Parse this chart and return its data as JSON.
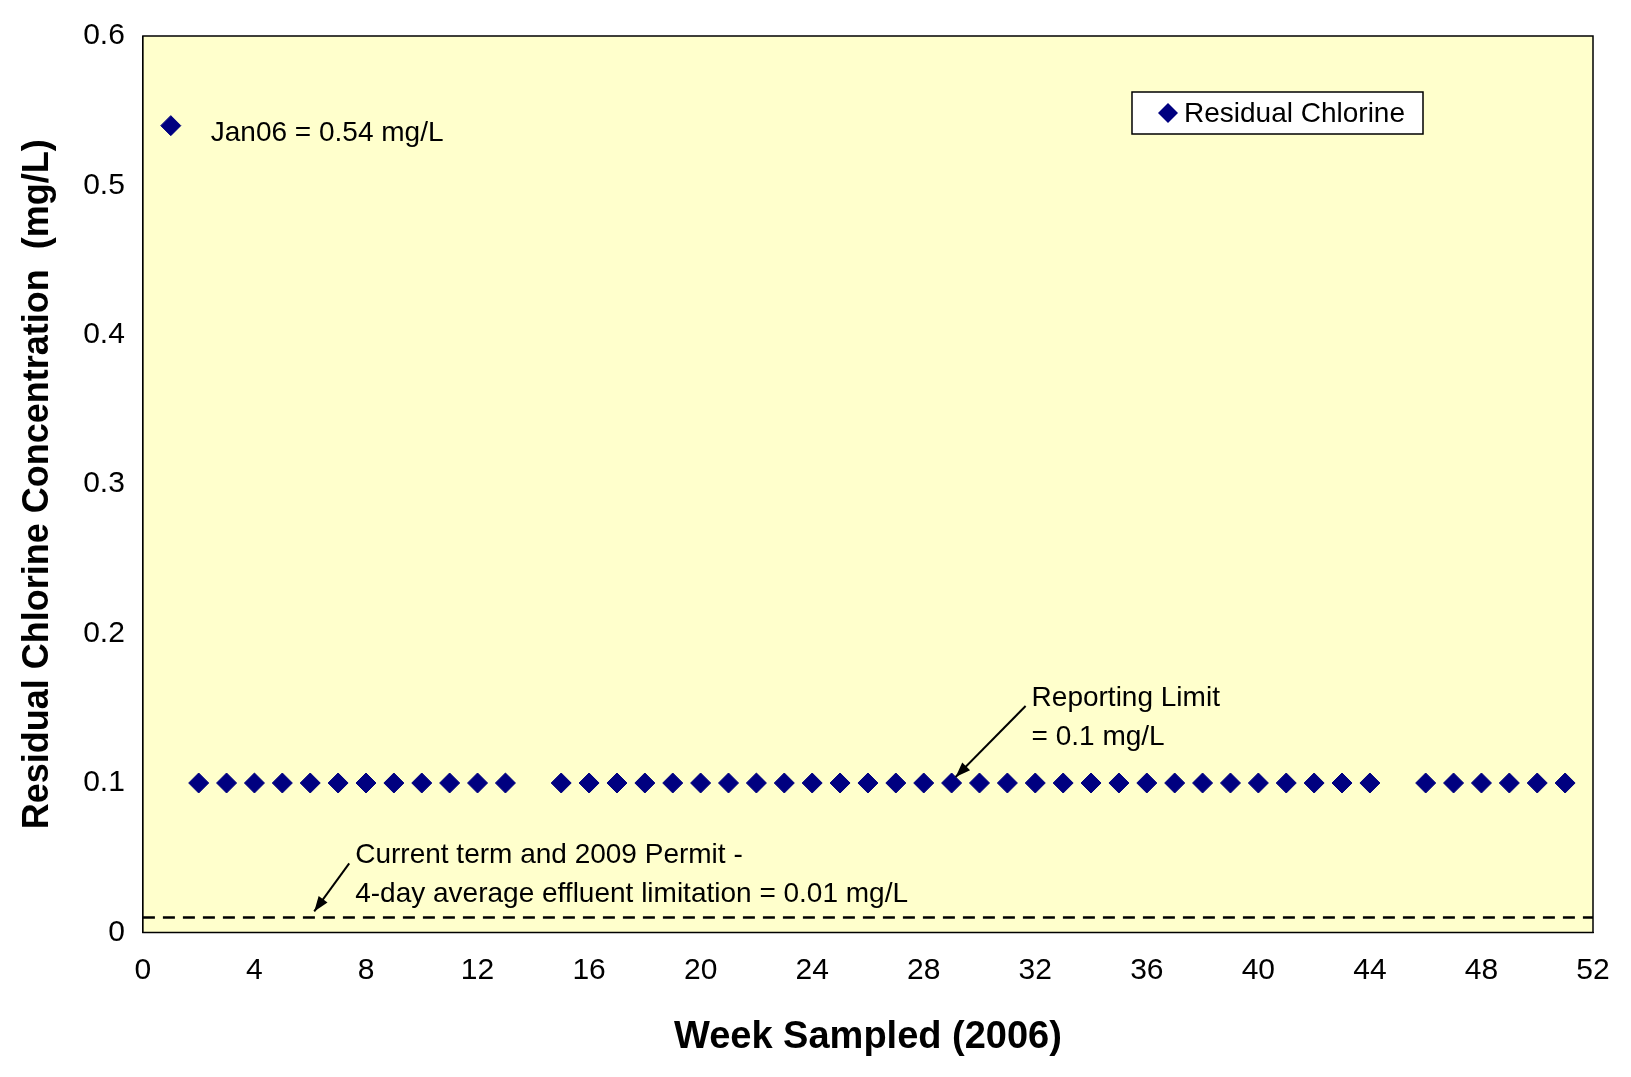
{
  "chart_data": {
    "type": "scatter",
    "xlabel": "Week Sampled (2006)",
    "ylabel": "Residual Chlorine Concentration  (mg/L)",
    "x": [
      1,
      2,
      3,
      4,
      5,
      6,
      7,
      8,
      9,
      10,
      11,
      12,
      13,
      15,
      16,
      17,
      18,
      19,
      20,
      21,
      22,
      23,
      24,
      25,
      26,
      27,
      28,
      29,
      30,
      31,
      32,
      33,
      34,
      35,
      36,
      37,
      38,
      39,
      40,
      41,
      42,
      43,
      44,
      46,
      47,
      48,
      49,
      50,
      51
    ],
    "series": [
      {
        "name": "Residual Chlorine",
        "color": "#000080",
        "values": [
          0.54,
          0.1,
          0.1,
          0.1,
          0.1,
          0.1,
          0.1,
          0.1,
          0.1,
          0.1,
          0.1,
          0.1,
          0.1,
          0.1,
          0.1,
          0.1,
          0.1,
          0.1,
          0.1,
          0.1,
          0.1,
          0.1,
          0.1,
          0.1,
          0.1,
          0.1,
          0.1,
          0.1,
          0.1,
          0.1,
          0.1,
          0.1,
          0.1,
          0.1,
          0.1,
          0.1,
          0.1,
          0.1,
          0.1,
          0.1,
          0.1,
          0.1,
          0.1,
          0.1,
          0.1,
          0.1,
          0.1,
          0.1,
          0.1
        ]
      }
    ],
    "xlim": [
      0,
      52
    ],
    "xticks": [
      0,
      4,
      8,
      12,
      16,
      20,
      24,
      28,
      32,
      36,
      40,
      44,
      48,
      52
    ],
    "ylim": [
      0,
      0.6
    ],
    "yticks": [
      0,
      0.1,
      0.2,
      0.3,
      0.4,
      0.5,
      0.6
    ],
    "marker": "diamond",
    "grid": false,
    "legend": "top right",
    "ref_lines": [
      {
        "axis": "y",
        "value": 0.01,
        "color": "#000000",
        "line_style": "dashed"
      }
    ],
    "annotations": [
      {
        "text": "Jan06 = 0.54 mg/L",
        "x": 1,
        "y": 0.54
      },
      {
        "text": "Reporting Limit\n= 0.1 mg/L",
        "x": 29,
        "y": 0.1
      },
      {
        "text": "Current term and 2009 Permit -\n4-day average effluent limitation = 0.01 mg/L",
        "x": 6,
        "y": 0.01
      }
    ]
  }
}
